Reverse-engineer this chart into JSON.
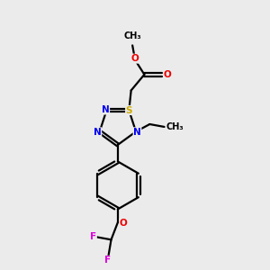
{
  "bg_color": "#ebebeb",
  "colors": {
    "C": "#000000",
    "N": "#0000ee",
    "O": "#ee0000",
    "S": "#ccaa00",
    "F": "#dd00dd"
  },
  "fs": 7.5,
  "lw": 1.6,
  "figsize": [
    3.0,
    3.0
  ],
  "dpi": 100
}
